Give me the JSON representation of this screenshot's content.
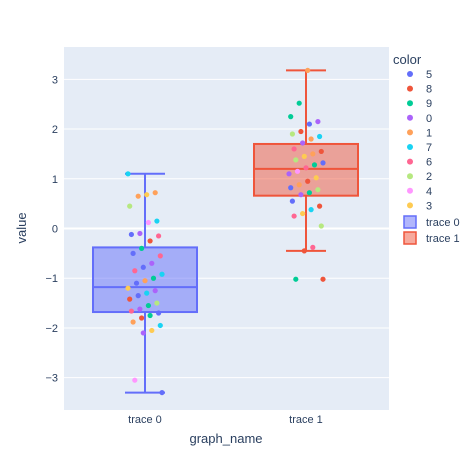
{
  "chart_data": {
    "type": "box",
    "xlabel": "graph_name",
    "ylabel": "value",
    "ylim": [
      -3.65,
      3.65
    ],
    "yticks": [
      3,
      2,
      1,
      0,
      -1,
      -2,
      -3
    ],
    "ytick_labels": [
      "3",
      "2",
      "1",
      "0",
      "−1",
      "−2",
      "−3"
    ],
    "categories": [
      "trace 0",
      "trace 1"
    ],
    "legend": {
      "title": "color",
      "placement": "right",
      "color_items": [
        {
          "label": "5",
          "color": "#636efa"
        },
        {
          "label": "8",
          "color": "#ef553b"
        },
        {
          "label": "9",
          "color": "#00cc96"
        },
        {
          "label": "0",
          "color": "#ab63fa"
        },
        {
          "label": "1",
          "color": "#ffa15a"
        },
        {
          "label": "7",
          "color": "#19d3f3"
        },
        {
          "label": "6",
          "color": "#ff6692"
        },
        {
          "label": "2",
          "color": "#b6e880"
        },
        {
          "label": "4",
          "color": "#ff97ff"
        },
        {
          "label": "3",
          "color": "#fecb52"
        }
      ],
      "box_items": [
        {
          "label": "trace 0",
          "color": "#636efa"
        },
        {
          "label": "trace 1",
          "color": "#ef553b"
        }
      ]
    },
    "series": [
      {
        "name": "trace 0",
        "color": "#636efa",
        "box": {
          "lower_fence": -3.3,
          "q1": -1.68,
          "median": -1.18,
          "q3": -0.38,
          "upper_fence": 1.1
        },
        "points": [
          {
            "y": 1.1,
            "c": "7"
          },
          {
            "y": 0.72,
            "c": "1"
          },
          {
            "y": 0.68,
            "c": "3"
          },
          {
            "y": 0.65,
            "c": "1"
          },
          {
            "y": 0.45,
            "c": "2"
          },
          {
            "y": 0.15,
            "c": "7"
          },
          {
            "y": 0.12,
            "c": "4"
          },
          {
            "y": -0.1,
            "c": "0"
          },
          {
            "y": -0.12,
            "c": "5"
          },
          {
            "y": -0.15,
            "c": "6"
          },
          {
            "y": -0.25,
            "c": "8"
          },
          {
            "y": -0.4,
            "c": "9"
          },
          {
            "y": -0.5,
            "c": "5"
          },
          {
            "y": -0.55,
            "c": "6"
          },
          {
            "y": -0.7,
            "c": "0"
          },
          {
            "y": -0.78,
            "c": "5"
          },
          {
            "y": -0.85,
            "c": "6"
          },
          {
            "y": -0.92,
            "c": "7"
          },
          {
            "y": -1.0,
            "c": "9"
          },
          {
            "y": -1.05,
            "c": "1"
          },
          {
            "y": -1.1,
            "c": "5"
          },
          {
            "y": -1.2,
            "c": "3"
          },
          {
            "y": -1.25,
            "c": "0"
          },
          {
            "y": -1.3,
            "c": "7"
          },
          {
            "y": -1.35,
            "c": "5"
          },
          {
            "y": -1.42,
            "c": "8"
          },
          {
            "y": -1.5,
            "c": "2"
          },
          {
            "y": -1.55,
            "c": "9"
          },
          {
            "y": -1.62,
            "c": "0"
          },
          {
            "y": -1.66,
            "c": "6"
          },
          {
            "y": -1.7,
            "c": "5"
          },
          {
            "y": -1.75,
            "c": "9"
          },
          {
            "y": -1.8,
            "c": "8"
          },
          {
            "y": -1.88,
            "c": "1"
          },
          {
            "y": -1.95,
            "c": "7"
          },
          {
            "y": -2.05,
            "c": "3"
          },
          {
            "y": -2.1,
            "c": "0"
          },
          {
            "y": -3.05,
            "c": "4"
          },
          {
            "y": -3.3,
            "c": "5"
          }
        ]
      },
      {
        "name": "trace 1",
        "color": "#ef553b",
        "box": {
          "lower_fence": -0.45,
          "q1": 0.66,
          "median": 1.2,
          "q3": 1.7,
          "upper_fence": 3.18
        },
        "points": [
          {
            "y": 3.18,
            "c": "1"
          },
          {
            "y": 2.52,
            "c": "9"
          },
          {
            "y": 2.25,
            "c": "9"
          },
          {
            "y": 2.15,
            "c": "0"
          },
          {
            "y": 2.1,
            "c": "5"
          },
          {
            "y": 1.95,
            "c": "8"
          },
          {
            "y": 1.9,
            "c": "2"
          },
          {
            "y": 1.85,
            "c": "7"
          },
          {
            "y": 1.8,
            "c": "1"
          },
          {
            "y": 1.72,
            "c": "0"
          },
          {
            "y": 1.6,
            "c": "6"
          },
          {
            "y": 1.55,
            "c": "8"
          },
          {
            "y": 1.5,
            "c": "1"
          },
          {
            "y": 1.45,
            "c": "3"
          },
          {
            "y": 1.38,
            "c": "2"
          },
          {
            "y": 1.32,
            "c": "5"
          },
          {
            "y": 1.28,
            "c": "9"
          },
          {
            "y": 1.22,
            "c": "6"
          },
          {
            "y": 1.15,
            "c": "4"
          },
          {
            "y": 1.1,
            "c": "0"
          },
          {
            "y": 1.02,
            "c": "3"
          },
          {
            "y": 0.95,
            "c": "8"
          },
          {
            "y": 0.88,
            "c": "1"
          },
          {
            "y": 0.82,
            "c": "5"
          },
          {
            "y": 0.78,
            "c": "2"
          },
          {
            "y": 0.72,
            "c": "9"
          },
          {
            "y": 0.68,
            "c": "0"
          },
          {
            "y": 0.55,
            "c": "5"
          },
          {
            "y": 0.45,
            "c": "8"
          },
          {
            "y": 0.38,
            "c": "7"
          },
          {
            "y": 0.3,
            "c": "3"
          },
          {
            "y": 0.25,
            "c": "6"
          },
          {
            "y": 0.05,
            "c": "2"
          },
          {
            "y": -0.38,
            "c": "6"
          },
          {
            "y": -0.45,
            "c": "8"
          },
          {
            "y": -1.02,
            "c": "9"
          },
          {
            "y": -1.02,
            "c": "8"
          }
        ]
      }
    ]
  }
}
